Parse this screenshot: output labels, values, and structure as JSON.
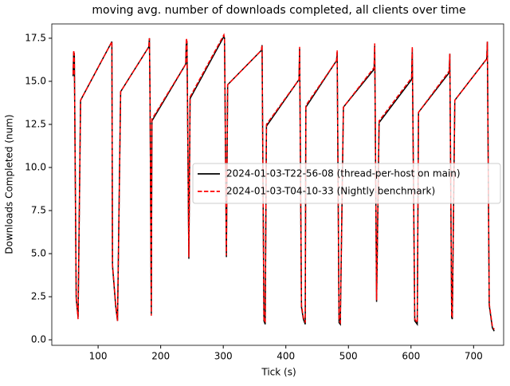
{
  "chart_data": {
    "type": "line",
    "title": "moving avg. number of downloads completed, all clients over time",
    "x_label": "Tick (s)",
    "y_label": "Downloads Completed (num)",
    "x": [
      60,
      61,
      62,
      65,
      68,
      72,
      122,
      123,
      128,
      131,
      136,
      181,
      182,
      183,
      185,
      186,
      240,
      241,
      242,
      245,
      247,
      301,
      302,
      305,
      307,
      361,
      362,
      365,
      367,
      369,
      421,
      422,
      425,
      428,
      431,
      432,
      481,
      482,
      485,
      487,
      492,
      541,
      542,
      545,
      549,
      601,
      602,
      606,
      610,
      612,
      661,
      662,
      665,
      666,
      670,
      721,
      722,
      725,
      730,
      733
    ],
    "series": [
      {
        "name": "2024-01-03-T22-56-08 (thread-per-host on main)",
        "color": "#000000",
        "dash": false,
        "values": [
          15.3,
          16.7,
          16.6,
          2.4,
          1.3,
          13.9,
          17.3,
          4.3,
          2.0,
          1.1,
          14.4,
          17.0,
          17.5,
          14.0,
          1.5,
          12.7,
          16.0,
          17.4,
          17.3,
          4.7,
          14.0,
          17.6,
          17.5,
          4.8,
          14.8,
          16.8,
          17.1,
          1.1,
          0.9,
          12.4,
          15.1,
          16.9,
          1.9,
          1.2,
          0.9,
          13.5,
          16.2,
          16.7,
          1.0,
          0.9,
          13.5,
          15.7,
          17.1,
          2.2,
          12.6,
          15.1,
          16.9,
          1.1,
          0.9,
          13.2,
          15.5,
          16.6,
          1.3,
          1.2,
          13.9,
          16.3,
          17.3,
          2.0,
          0.7,
          0.5
        ]
      },
      {
        "name": "2024-01-03-T04-10-33 (Nightly benchmark)",
        "color": "#ff0000",
        "dash": true,
        "values": [
          15.4,
          16.8,
          16.5,
          2.5,
          1.2,
          13.9,
          17.3,
          4.4,
          2.1,
          1.1,
          14.4,
          17.0,
          17.5,
          14.1,
          1.4,
          12.8,
          16.0,
          17.5,
          17.3,
          4.8,
          14.1,
          17.7,
          17.5,
          4.9,
          14.8,
          16.8,
          17.1,
          1.2,
          1.0,
          12.5,
          15.1,
          17.0,
          2.0,
          1.3,
          1.0,
          13.6,
          16.2,
          16.8,
          1.1,
          1.0,
          13.5,
          15.8,
          17.2,
          2.3,
          12.7,
          15.2,
          17.0,
          1.2,
          1.0,
          13.2,
          15.6,
          16.6,
          1.4,
          1.3,
          13.9,
          16.3,
          17.3,
          2.1,
          0.8,
          0.6
        ]
      }
    ],
    "xlim": [
      26,
      748
    ],
    "xticks": [
      100,
      200,
      300,
      400,
      500,
      600,
      700
    ],
    "ylim": [
      -0.32,
      18.33
    ],
    "yticks": [
      {
        "value": 0,
        "label": "0.0"
      },
      2.5,
      {
        "value": 5,
        "label": "5.0"
      },
      7.5,
      {
        "value": 10,
        "label": "10.0"
      },
      12.5,
      {
        "value": 15,
        "label": "15.0"
      },
      17.5
    ],
    "legend": "center right"
  }
}
